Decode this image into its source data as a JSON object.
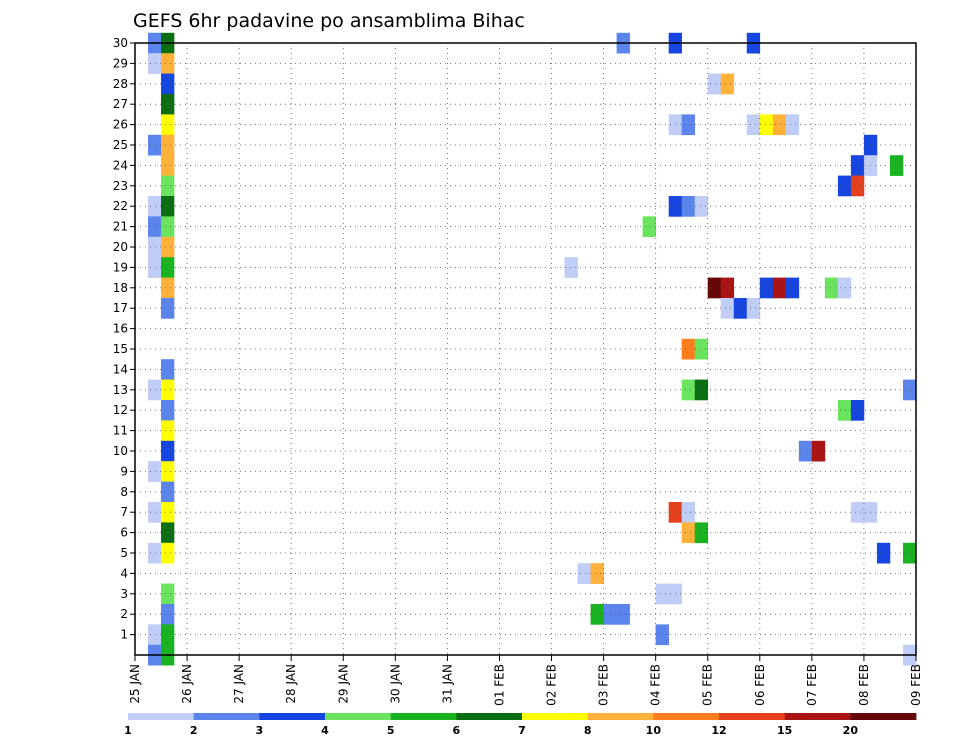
{
  "chart_data": {
    "type": "heatmap",
    "title": "GEFS 6hr padavine po ansamblima Bihac",
    "x_tick_labels": [
      "25 JAN",
      "26 JAN",
      "27 JAN",
      "28 JAN",
      "29 JAN",
      "30 JAN",
      "31 JAN",
      "01 FEB",
      "02 FEB",
      "03 FEB",
      "04 FEB",
      "05 FEB",
      "06 FEB",
      "07 FEB",
      "08 FEB",
      "09 FEB"
    ],
    "y_tick_labels": [
      "1",
      "2",
      "3",
      "4",
      "5",
      "6",
      "7",
      "8",
      "9",
      "10",
      "11",
      "12",
      "13",
      "14",
      "15",
      "16",
      "17",
      "18",
      "19",
      "20",
      "21",
      "22",
      "23",
      "24",
      "25",
      "26",
      "27",
      "28",
      "29",
      "30"
    ],
    "x_range_days_from_start": [
      0,
      15
    ],
    "y_range": [
      0,
      30
    ],
    "step_hours": 6,
    "grid": true,
    "colorbar": {
      "position": "bottom",
      "levels": [
        "1",
        "2",
        "3",
        "4",
        "5",
        "6",
        "7",
        "8",
        "10",
        "12",
        "15",
        "20"
      ],
      "colors": [
        "#bfcdf7",
        "#5b84ec",
        "#1646df",
        "#6ae45f",
        "#19b321",
        "#0c6e12",
        "#ffff00",
        "#ffb13a",
        "#ff7d1c",
        "#e3411d",
        "#ab1414",
        "#650707"
      ]
    },
    "cells": [
      {
        "m": 30,
        "s": 1,
        "c": 1
      },
      {
        "m": 30,
        "s": 2,
        "c": 5
      },
      {
        "m": 30,
        "s": 37,
        "c": 1
      },
      {
        "m": 30,
        "s": 41,
        "c": 2
      },
      {
        "m": 30,
        "s": 47,
        "c": 2
      },
      {
        "m": 29,
        "s": 1,
        "c": 0
      },
      {
        "m": 29,
        "s": 2,
        "c": 7
      },
      {
        "m": 28,
        "s": 2,
        "c": 2
      },
      {
        "m": 28,
        "s": 44,
        "c": 0
      },
      {
        "m": 28,
        "s": 45,
        "c": 7
      },
      {
        "m": 27,
        "s": 2,
        "c": 5
      },
      {
        "m": 26,
        "s": 2,
        "c": 6
      },
      {
        "m": 26,
        "s": 41,
        "c": 0
      },
      {
        "m": 26,
        "s": 42,
        "c": 1
      },
      {
        "m": 26,
        "s": 47,
        "c": 0
      },
      {
        "m": 26,
        "s": 48,
        "c": 6
      },
      {
        "m": 26,
        "s": 49,
        "c": 7
      },
      {
        "m": 26,
        "s": 50,
        "c": 0
      },
      {
        "m": 25,
        "s": 1,
        "c": 1
      },
      {
        "m": 25,
        "s": 2,
        "c": 7
      },
      {
        "m": 25,
        "s": 56,
        "c": 2
      },
      {
        "m": 24,
        "s": 2,
        "c": 7
      },
      {
        "m": 24,
        "s": 55,
        "c": 2
      },
      {
        "m": 24,
        "s": 56,
        "c": 0
      },
      {
        "m": 24,
        "s": 58,
        "c": 4
      },
      {
        "m": 23,
        "s": 2,
        "c": 3
      },
      {
        "m": 23,
        "s": 54,
        "c": 2
      },
      {
        "m": 23,
        "s": 55,
        "c": 9
      },
      {
        "m": 22,
        "s": 1,
        "c": 0
      },
      {
        "m": 22,
        "s": 2,
        "c": 5
      },
      {
        "m": 22,
        "s": 41,
        "c": 2
      },
      {
        "m": 22,
        "s": 42,
        "c": 1
      },
      {
        "m": 22,
        "s": 43,
        "c": 0
      },
      {
        "m": 21,
        "s": 1,
        "c": 1
      },
      {
        "m": 21,
        "s": 2,
        "c": 3
      },
      {
        "m": 21,
        "s": 39,
        "c": 3
      },
      {
        "m": 20,
        "s": 1,
        "c": 0
      },
      {
        "m": 20,
        "s": 2,
        "c": 7
      },
      {
        "m": 19,
        "s": 1,
        "c": 0
      },
      {
        "m": 19,
        "s": 2,
        "c": 4
      },
      {
        "m": 19,
        "s": 33,
        "c": 0
      },
      {
        "m": 18,
        "s": 2,
        "c": 7
      },
      {
        "m": 18,
        "s": 44,
        "c": 11
      },
      {
        "m": 18,
        "s": 45,
        "c": 10
      },
      {
        "m": 18,
        "s": 48,
        "c": 2
      },
      {
        "m": 18,
        "s": 49,
        "c": 10
      },
      {
        "m": 18,
        "s": 50,
        "c": 2
      },
      {
        "m": 18,
        "s": 53,
        "c": 3
      },
      {
        "m": 18,
        "s": 54,
        "c": 0
      },
      {
        "m": 17,
        "s": 2,
        "c": 1
      },
      {
        "m": 17,
        "s": 45,
        "c": 0
      },
      {
        "m": 17,
        "s": 46,
        "c": 2
      },
      {
        "m": 17,
        "s": 47,
        "c": 0
      },
      {
        "m": 15,
        "s": 42,
        "c": 8
      },
      {
        "m": 15,
        "s": 43,
        "c": 3
      },
      {
        "m": 14,
        "s": 2,
        "c": 1
      },
      {
        "m": 13,
        "s": 1,
        "c": 0
      },
      {
        "m": 13,
        "s": 2,
        "c": 6
      },
      {
        "m": 13,
        "s": 42,
        "c": 3
      },
      {
        "m": 13,
        "s": 43,
        "c": 5
      },
      {
        "m": 13,
        "s": 59,
        "c": 1
      },
      {
        "m": 12,
        "s": 2,
        "c": 1
      },
      {
        "m": 12,
        "s": 54,
        "c": 3
      },
      {
        "m": 12,
        "s": 55,
        "c": 2
      },
      {
        "m": 11,
        "s": 2,
        "c": 6
      },
      {
        "m": 10,
        "s": 2,
        "c": 2
      },
      {
        "m": 10,
        "s": 51,
        "c": 1
      },
      {
        "m": 10,
        "s": 52,
        "c": 10
      },
      {
        "m": 9,
        "s": 1,
        "c": 0
      },
      {
        "m": 9,
        "s": 2,
        "c": 6
      },
      {
        "m": 8,
        "s": 2,
        "c": 1
      },
      {
        "m": 7,
        "s": 1,
        "c": 0
      },
      {
        "m": 7,
        "s": 2,
        "c": 6
      },
      {
        "m": 7,
        "s": 41,
        "c": 9
      },
      {
        "m": 7,
        "s": 42,
        "c": 0
      },
      {
        "m": 7,
        "s": 55,
        "c": 0
      },
      {
        "m": 7,
        "s": 56,
        "c": 0
      },
      {
        "m": 6,
        "s": 2,
        "c": 5
      },
      {
        "m": 6,
        "s": 42,
        "c": 7
      },
      {
        "m": 6,
        "s": 43,
        "c": 4
      },
      {
        "m": 5,
        "s": 1,
        "c": 0
      },
      {
        "m": 5,
        "s": 2,
        "c": 6
      },
      {
        "m": 5,
        "s": 57,
        "c": 2
      },
      {
        "m": 5,
        "s": 59,
        "c": 4
      },
      {
        "m": 4,
        "s": 34,
        "c": 0
      },
      {
        "m": 4,
        "s": 35,
        "c": 7
      },
      {
        "m": 3,
        "s": 2,
        "c": 3
      },
      {
        "m": 3,
        "s": 40,
        "c": 0
      },
      {
        "m": 3,
        "s": 41,
        "c": 0
      },
      {
        "m": 2,
        "s": 2,
        "c": 1
      },
      {
        "m": 2,
        "s": 35,
        "c": 4
      },
      {
        "m": 2,
        "s": 36,
        "c": 1
      },
      {
        "m": 2,
        "s": 37,
        "c": 1
      },
      {
        "m": 1,
        "s": 1,
        "c": 0
      },
      {
        "m": 1,
        "s": 2,
        "c": 4
      },
      {
        "m": 1,
        "s": 40,
        "c": 1
      },
      {
        "m": 0,
        "s": 1,
        "c": 1
      },
      {
        "m": 0,
        "s": 2,
        "c": 4
      },
      {
        "m": 0,
        "s": 59,
        "c": 0
      }
    ]
  }
}
